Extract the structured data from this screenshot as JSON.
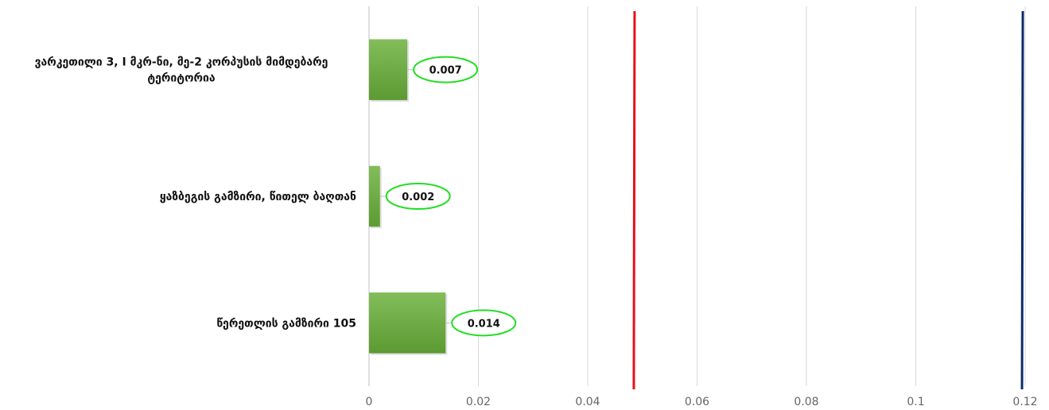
{
  "chart_data": {
    "type": "bar",
    "orientation": "horizontal",
    "categories": [
      [
        "ვარკეთილი 3, I მკრ-ნი, მე-2 კორპუსის მიმდებარე",
        "ტერიტორია"
      ],
      [
        "ყაზბეგის გამზირი, წითელ ბაღთან"
      ],
      [
        "წერეთლის გამზირი 105"
      ]
    ],
    "values": [
      0.007,
      0.002,
      0.014
    ],
    "data_labels": [
      "0.007",
      "0.002",
      "0.014"
    ],
    "xlim": [
      0,
      0.12
    ],
    "x_ticks": [
      0,
      0.02,
      0.04,
      0.06,
      0.08,
      0.1,
      0.12
    ],
    "x_tick_labels": [
      "0",
      "0.02",
      "0.04",
      "0.06",
      "0.08",
      "0.1",
      "0.12"
    ],
    "reference_lines": [
      {
        "value": 0.0485,
        "color": "#e8101c"
      },
      {
        "value": 0.1195,
        "color": "#0d2b6b"
      }
    ],
    "bar_color": "#6aaa3e",
    "label_outline_color": "#22dd22",
    "grid": true
  }
}
